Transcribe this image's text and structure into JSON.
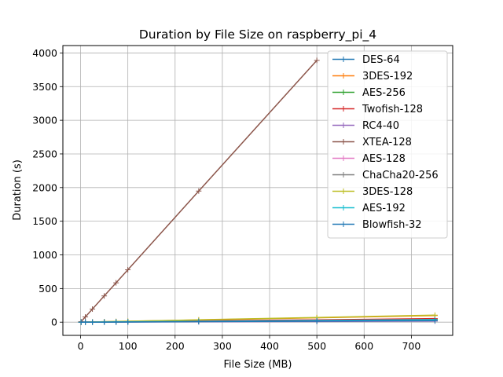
{
  "chart_data": {
    "type": "line",
    "title": "Duration by File Size on raspberry_pi_4",
    "xlabel": "File Size (MB)",
    "ylabel": "Duration (s)",
    "xlim": [
      -37.5,
      787.5
    ],
    "ylim": [
      -196,
      4110
    ],
    "xticks": [
      0,
      100,
      200,
      300,
      400,
      500,
      600,
      700
    ],
    "yticks": [
      0,
      500,
      1000,
      1500,
      2000,
      2500,
      3000,
      3500,
      4000
    ],
    "grid": true,
    "legend_position": "upper right",
    "marker": "+",
    "series": [
      {
        "name": "DES-64",
        "color": "#1f77b4",
        "x": [
          1,
          10,
          25,
          50,
          75,
          100,
          250,
          500,
          750
        ],
        "y": [
          0.05,
          0.5,
          1.2,
          2.4,
          3.6,
          4.8,
          12,
          24,
          36
        ]
      },
      {
        "name": "3DES-192",
        "color": "#ff7f0e",
        "x": [
          1,
          10,
          25,
          50,
          75,
          100,
          250,
          500,
          750
        ],
        "y": [
          0.13,
          1.3,
          3.3,
          6.5,
          9.8,
          13,
          33,
          65,
          98
        ]
      },
      {
        "name": "AES-256",
        "color": "#2ca02c",
        "x": [
          1,
          10,
          25,
          50,
          75,
          100,
          250,
          500,
          750
        ],
        "y": [
          0.06,
          0.6,
          1.5,
          3,
          4.5,
          6,
          15,
          30,
          45
        ]
      },
      {
        "name": "Twofish-128",
        "color": "#d62728",
        "x": [
          1,
          10,
          25,
          50,
          75,
          100,
          250,
          500,
          750
        ],
        "y": [
          0.07,
          0.7,
          1.8,
          3.5,
          5.3,
          7,
          18,
          35,
          53
        ]
      },
      {
        "name": "RC4-40",
        "color": "#9467bd",
        "x": [
          1,
          10,
          25,
          50,
          75,
          100,
          250,
          500,
          750
        ],
        "y": [
          0.02,
          0.2,
          0.5,
          1,
          1.5,
          2,
          5,
          10,
          15
        ]
      },
      {
        "name": "XTEA-128",
        "color": "#8c564b",
        "x": [
          1,
          10,
          25,
          50,
          75,
          100,
          250,
          500
        ],
        "y": [
          7.8,
          78,
          195,
          390,
          584,
          778,
          1948,
          3890
        ]
      },
      {
        "name": "AES-128",
        "color": "#e377c2",
        "x": [
          1,
          10,
          25,
          50,
          75,
          100,
          250,
          500,
          750
        ],
        "y": [
          0.05,
          0.5,
          1.2,
          2.4,
          3.6,
          4.8,
          12,
          24,
          36
        ]
      },
      {
        "name": "ChaCha20-256",
        "color": "#7f7f7f",
        "x": [
          1,
          10,
          25,
          50,
          75,
          100,
          250,
          500,
          750
        ],
        "y": [
          0.04,
          0.4,
          1,
          2,
          3,
          4,
          10,
          20,
          30
        ]
      },
      {
        "name": "3DES-128",
        "color": "#bcbd22",
        "x": [
          1,
          10,
          25,
          50,
          75,
          100,
          250,
          500,
          750
        ],
        "y": [
          0.14,
          1.4,
          3.5,
          7,
          10.5,
          14,
          35,
          70,
          105
        ]
      },
      {
        "name": "AES-192",
        "color": "#17becf",
        "x": [
          1,
          10,
          25,
          50,
          75,
          100,
          250,
          500,
          750
        ],
        "y": [
          0.05,
          0.5,
          1.3,
          2.6,
          3.9,
          5.2,
          13,
          26,
          39
        ]
      },
      {
        "name": "Blowfish-32",
        "color": "#1f77b4",
        "x": [
          1,
          10,
          25,
          50,
          75,
          100,
          250,
          500,
          750
        ],
        "y": [
          0.03,
          0.3,
          0.8,
          1.5,
          2.3,
          3,
          8,
          15,
          23
        ]
      }
    ]
  }
}
